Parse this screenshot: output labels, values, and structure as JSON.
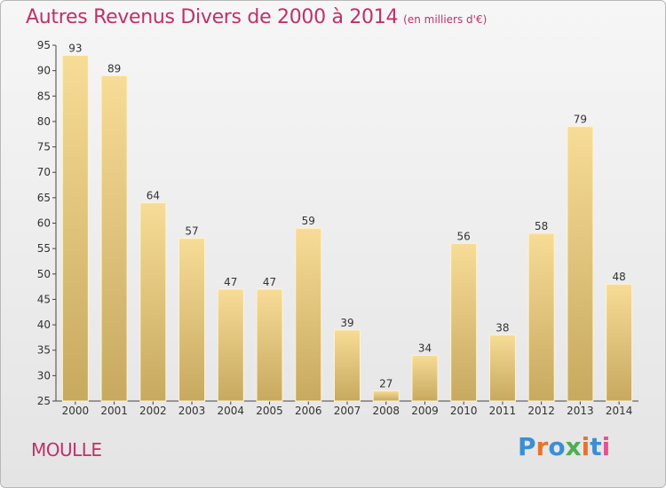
{
  "header": {
    "title": "Autres Revenus Divers de 2000 à 2014",
    "subtitle": "(en milliers d'€)"
  },
  "footer": {
    "commune": "MOULLE",
    "logo_text": "Proxiti"
  },
  "colors": {
    "accent": "#c0306a",
    "bar_top": "#f7dc97",
    "bar_bottom": "#c7a95f"
  },
  "chart_data": {
    "type": "bar",
    "title": "Autres Revenus Divers de 2000 à 2014",
    "subtitle": "(en milliers d'€)",
    "categories": [
      "2000",
      "2001",
      "2002",
      "2003",
      "2004",
      "2005",
      "2006",
      "2007",
      "2008",
      "2009",
      "2010",
      "2011",
      "2012",
      "2013",
      "2014"
    ],
    "values": [
      93,
      89,
      64,
      57,
      47,
      47,
      59,
      39,
      27,
      34,
      56,
      38,
      58,
      79,
      48
    ],
    "xlabel": "",
    "ylabel": "",
    "ylim": [
      25,
      95
    ],
    "yticks": [
      25,
      30,
      35,
      40,
      45,
      50,
      55,
      60,
      65,
      70,
      75,
      80,
      85,
      90,
      95
    ],
    "grid": false,
    "data_labels": true
  }
}
